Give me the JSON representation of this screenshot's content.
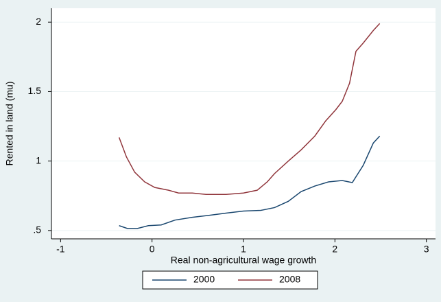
{
  "chart_data": {
    "type": "line",
    "x_label": "Real non-agricultural wage growth",
    "y_label": "Rented in land (mu)",
    "xlim": [
      -1.1,
      3.1
    ],
    "xticks": [
      -1,
      0,
      1,
      2,
      3
    ],
    "ylim": [
      0.44,
      2.1
    ],
    "yticks": [
      {
        "value": 0.5,
        "label": ".5"
      },
      1,
      1.5,
      2
    ],
    "grid": true,
    "legend": "bottom",
    "series": [
      {
        "name": "2000",
        "color": "#1a476f",
        "x": [
          -0.36,
          -0.27,
          -0.16,
          -0.04,
          0.1,
          0.25,
          0.44,
          0.63,
          0.81,
          1.0,
          1.19,
          1.34,
          1.49,
          1.63,
          1.78,
          1.93,
          2.08,
          2.19,
          2.31,
          2.42,
          2.49
        ],
        "values": [
          0.535,
          0.515,
          0.515,
          0.535,
          0.54,
          0.575,
          0.595,
          0.61,
          0.625,
          0.64,
          0.645,
          0.665,
          0.71,
          0.78,
          0.82,
          0.85,
          0.86,
          0.845,
          0.97,
          1.13,
          1.18
        ]
      },
      {
        "name": "2008",
        "color": "#90353b",
        "x": [
          -0.36,
          -0.28,
          -0.19,
          -0.08,
          0.03,
          0.18,
          0.29,
          0.44,
          0.59,
          0.81,
          1.0,
          1.15,
          1.26,
          1.34,
          1.49,
          1.63,
          1.78,
          1.9,
          2.01,
          2.08,
          2.16,
          2.23,
          2.31,
          2.42,
          2.49
        ],
        "values": [
          1.17,
          1.03,
          0.92,
          0.85,
          0.81,
          0.79,
          0.77,
          0.77,
          0.76,
          0.76,
          0.77,
          0.79,
          0.85,
          0.91,
          1.0,
          1.08,
          1.18,
          1.29,
          1.37,
          1.43,
          1.56,
          1.79,
          1.85,
          1.94,
          1.99
        ]
      }
    ]
  }
}
